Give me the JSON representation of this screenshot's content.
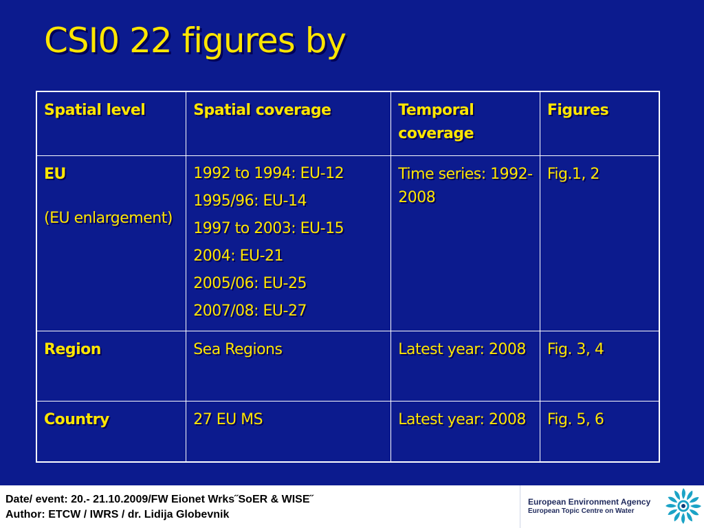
{
  "slide": {
    "title": "CSI0 22 figures by"
  },
  "table": {
    "headers": [
      "Spatial level",
      "Spatial coverage",
      "Temporal coverage",
      "Figures"
    ],
    "rows": [
      {
        "level": "EU",
        "level_note": "(EU enlargement)",
        "coverage": [
          "1992 to 1994: EU-12",
          "1995/96: EU-14",
          "1997 to 2003: EU-15",
          "2004: EU-21",
          "2005/06: EU-25",
          "2007/08: EU-27"
        ],
        "temporal": "Time series: 1992-2008",
        "figures": "Fig.1, 2"
      },
      {
        "level": "Region",
        "coverage": [
          "Sea Regions"
        ],
        "temporal": "Latest year: 2008",
        "figures": "Fig. 3, 4"
      },
      {
        "level": "Country",
        "coverage": [
          "27 EU MS"
        ],
        "temporal": "Latest year: 2008",
        "figures": "Fig. 5, 6"
      }
    ]
  },
  "footer": {
    "line1": "Date/ event: 20.- 21.10.2009/FW Eionet Wrks˝SoER & WISE˝",
    "line2": "Author: ETCW / IWRS / dr. Lidija Globevnik",
    "org_name": "European Environment Agency",
    "org_sub": "European Topic Centre on Water",
    "logo_icon": "eea-logo-icon"
  },
  "colors": {
    "background": "#0c1b8e",
    "text_accent": "#ffe600",
    "border": "#ffffff",
    "footer_bg": "#ffffff"
  }
}
